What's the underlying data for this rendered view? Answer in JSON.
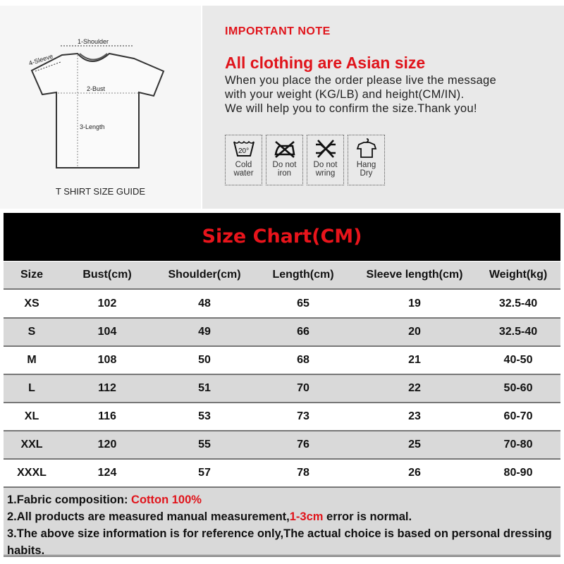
{
  "guide": {
    "labels": {
      "shoulder": "1-Shoulder",
      "bust": "2-Bust",
      "length": "3-Length",
      "sleeve": "4-Sleeve"
    },
    "caption": "T SHIRT SIZE GUIDE"
  },
  "note": {
    "heading": "IMPORTANT NOTE",
    "title": "All clothing are Asian size",
    "lines": [
      "When you place the order please live the message",
      "with your weight (KG/LB) and height(CM/IN).",
      "We will help you to confirm the size.Thank you!"
    ]
  },
  "care": [
    {
      "icon": "cold-water-icon",
      "l1": "Cold",
      "l2": "water"
    },
    {
      "icon": "do-not-iron-icon",
      "l1": "Do not",
      "l2": "iron"
    },
    {
      "icon": "do-not-wring-icon",
      "l1": "Do not",
      "l2": "wring"
    },
    {
      "icon": "hang-dry-icon",
      "l1": "Hang",
      "l2": "Dry"
    }
  ],
  "care_temp": "20°",
  "chart": {
    "title": "Size Chart(CM)",
    "headers": [
      "Size",
      "Bust(cm)",
      "Shoulder(cm)",
      "Length(cm)",
      "Sleeve length(cm)",
      "Weight(kg)"
    ],
    "rows": [
      [
        "XS",
        "102",
        "48",
        "65",
        "19",
        "32.5-40"
      ],
      [
        "S",
        "104",
        "49",
        "66",
        "20",
        "32.5-40"
      ],
      [
        "M",
        "108",
        "50",
        "68",
        "21",
        "40-50"
      ],
      [
        "L",
        "112",
        "51",
        "70",
        "22",
        "50-60"
      ],
      [
        "XL",
        "116",
        "53",
        "73",
        "23",
        "60-70"
      ],
      [
        "XXL",
        "120",
        "55",
        "76",
        "25",
        "70-80"
      ],
      [
        "XXXL",
        "124",
        "57",
        "78",
        "26",
        "80-90"
      ]
    ]
  },
  "notes": {
    "n1": "1.Fabric composition: ",
    "n1_red": "Cotton 100%",
    "n2": "2.All products are measured manual measurement,",
    "n2_red": "1-3cm",
    "n2_end": " error is normal.",
    "n3": "3.The above size information is for reference only,The actual choice is based on personal dressing habits."
  },
  "colors": {
    "accent": "#e0141b",
    "header_bg": "#000000",
    "row_alt": "#d9d9d9"
  }
}
